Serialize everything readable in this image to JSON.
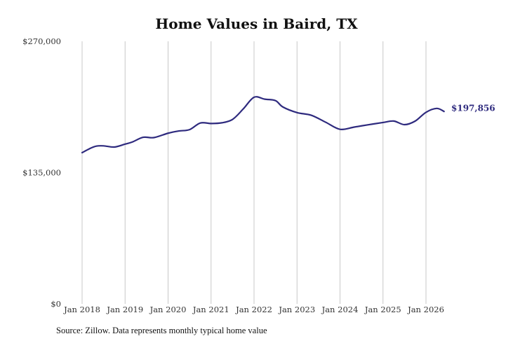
{
  "chart_data": {
    "type": "line",
    "title": "Home Values in Baird, TX",
    "xlabel": "",
    "ylabel": "",
    "ylim": [
      0,
      270000
    ],
    "y_ticks": [
      0,
      135000,
      270000
    ],
    "y_tick_labels": [
      "$0",
      "$135,000",
      "$270,000"
    ],
    "x_ticks": [
      2018,
      2019,
      2020,
      2021,
      2022,
      2023,
      2024,
      2025,
      2026
    ],
    "x_tick_labels": [
      "Jan 2018",
      "Jan 2019",
      "Jan 2020",
      "Jan 2021",
      "Jan 2022",
      "Jan 2023",
      "Jan 2024",
      "Jan 2025",
      "Jan 2026"
    ],
    "grid": "vertical",
    "line_color": "#2e2a7e",
    "series": [
      {
        "values": [
          [
            2018.0,
            155500
          ],
          [
            2018.17,
            159500
          ],
          [
            2018.33,
            162200
          ],
          [
            2018.5,
            162500
          ],
          [
            2018.75,
            161300
          ],
          [
            2019.0,
            164300
          ],
          [
            2019.17,
            166500
          ],
          [
            2019.42,
            171300
          ],
          [
            2019.67,
            171000
          ],
          [
            2020.0,
            175500
          ],
          [
            2020.25,
            177800
          ],
          [
            2020.5,
            179200
          ],
          [
            2020.75,
            186000
          ],
          [
            2021.0,
            185500
          ],
          [
            2021.25,
            186200
          ],
          [
            2021.5,
            189700
          ],
          [
            2021.75,
            200500
          ],
          [
            2022.0,
            212500
          ],
          [
            2022.25,
            210500
          ],
          [
            2022.5,
            209000
          ],
          [
            2022.67,
            202500
          ],
          [
            2023.0,
            196700
          ],
          [
            2023.33,
            194000
          ],
          [
            2023.67,
            186700
          ],
          [
            2024.0,
            179500
          ],
          [
            2024.33,
            181800
          ],
          [
            2024.67,
            184300
          ],
          [
            2025.0,
            186500
          ],
          [
            2025.25,
            188000
          ],
          [
            2025.5,
            184300
          ],
          [
            2025.75,
            188000
          ],
          [
            2026.0,
            197000
          ],
          [
            2026.25,
            201000
          ],
          [
            2026.42,
            197856
          ]
        ]
      }
    ],
    "end_label": "$197,856"
  },
  "footer": {
    "source": "Source: Zillow. Data represents monthly typical home value"
  }
}
